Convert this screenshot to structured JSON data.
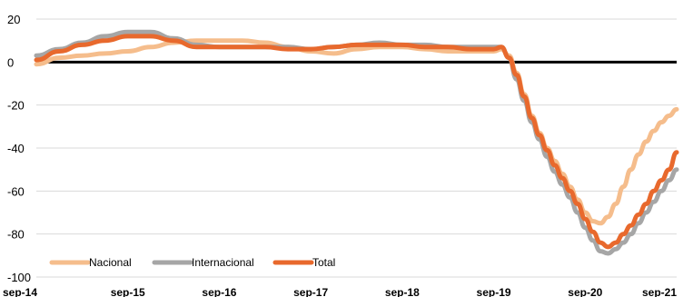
{
  "chart_data": {
    "type": "line",
    "title": "",
    "xlabel": "",
    "ylabel": "",
    "ylim": [
      -100,
      20
    ],
    "yticks": [
      "20",
      "0",
      "-20",
      "-40",
      "-60",
      "-80",
      "-100"
    ],
    "ytick_values": [
      20,
      0,
      -20,
      -40,
      -60,
      -80,
      -100
    ],
    "xticks": [
      "sep-14",
      "sep-15",
      "sep-16",
      "sep-17",
      "sep-18",
      "sep-19",
      "sep-20",
      "sep-21"
    ],
    "grid": "horizontal",
    "legend_position": "bottom-left",
    "x": [
      "sep-14",
      "dic-14",
      "mar-15",
      "jun-15",
      "sep-15",
      "dic-15",
      "mar-16",
      "jun-16",
      "sep-16",
      "dic-16",
      "mar-17",
      "jun-17",
      "sep-17",
      "dic-17",
      "mar-18",
      "jun-18",
      "sep-18",
      "dic-18",
      "mar-19",
      "jun-19",
      "sep-19",
      "oct-19",
      "nov-19",
      "dic-19",
      "ene-20",
      "feb-20",
      "mar-20",
      "abr-20",
      "may-20",
      "jun-20",
      "jul-20",
      "ago-20",
      "sep-20",
      "oct-20",
      "nov-20",
      "dic-20",
      "ene-21",
      "feb-21",
      "mar-21",
      "abr-21",
      "may-21",
      "jun-21",
      "jul-21",
      "ago-21",
      "sep-21"
    ],
    "series": [
      {
        "name": "Nacional",
        "color": "#f5bd8c",
        "values": [
          -1,
          2,
          3,
          4,
          5,
          7,
          9,
          10,
          10,
          10,
          9,
          7,
          5,
          4,
          6,
          7,
          7,
          6,
          5,
          5,
          5,
          6,
          3,
          -5,
          -15,
          -25,
          -33,
          -40,
          -46,
          -52,
          -58,
          -64,
          -70,
          -74,
          -75,
          -72,
          -66,
          -58,
          -50,
          -43,
          -37,
          -32,
          -28,
          -25,
          -22
        ]
      },
      {
        "name": "Internacional",
        "color": "#a6a6a6",
        "values": [
          3,
          6,
          9,
          12,
          14,
          14,
          11,
          8,
          7,
          7,
          7,
          7,
          6,
          7,
          8,
          9,
          8,
          8,
          7,
          7,
          7,
          7,
          2,
          -8,
          -18,
          -28,
          -36,
          -44,
          -51,
          -57,
          -63,
          -70,
          -77,
          -83,
          -88,
          -89,
          -87,
          -84,
          -80,
          -75,
          -70,
          -65,
          -60,
          -55,
          -50
        ]
      },
      {
        "name": "Total",
        "color": "#e8692d",
        "values": [
          1,
          5,
          8,
          10,
          12,
          12,
          10,
          7,
          7,
          7,
          7,
          6,
          6,
          7,
          8,
          8,
          8,
          7,
          7,
          6,
          6,
          7,
          2,
          -6,
          -16,
          -26,
          -34,
          -41,
          -48,
          -54,
          -60,
          -66,
          -73,
          -79,
          -84,
          -86,
          -84,
          -80,
          -76,
          -71,
          -66,
          -60,
          -55,
          -50,
          -42
        ]
      }
    ]
  }
}
